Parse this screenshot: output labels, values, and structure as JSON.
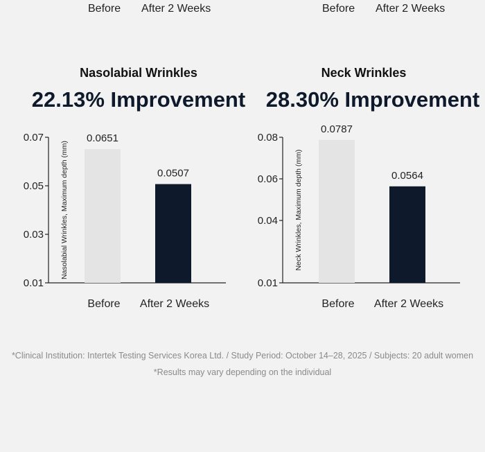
{
  "top_labels": {
    "left": [
      "Before",
      "After 2 Weeks"
    ],
    "right": [
      "Before",
      "After 2 Weeks"
    ]
  },
  "colors": {
    "before_bar": "#e4e4e4",
    "after_bar": "#0e1a2b",
    "axis": "#222222"
  },
  "chart_data": [
    {
      "type": "bar",
      "title": "Nasolabial Wrinkles",
      "headline": "22.13% Improvement",
      "categories": [
        "Before",
        "After 2 Weeks"
      ],
      "values": [
        0.0651,
        0.0507
      ],
      "value_labels": [
        "0.0651",
        "0.0507"
      ],
      "ylabel": "Nasolabial Wrinkles, Maximum depth (mm)",
      "ylim": [
        0.01,
        0.07
      ],
      "yticks": [
        0.01,
        0.03,
        0.05,
        0.07
      ],
      "ytick_labels": [
        "0.01",
        "0.03",
        "0.05",
        "0.07"
      ],
      "grid": false
    },
    {
      "type": "bar",
      "title": "Neck Wrinkles",
      "headline": "28.30% Improvement",
      "categories": [
        "Before",
        "After 2 Weeks"
      ],
      "values": [
        0.0787,
        0.0564
      ],
      "value_labels": [
        "0.0787",
        "0.0564"
      ],
      "ylabel": "Neck Wrinkles, Maximum depth (mm)",
      "ylim": [
        0.01,
        0.08
      ],
      "yticks": [
        0.01,
        0.04,
        0.06,
        0.08
      ],
      "ytick_labels": [
        "0.01",
        "0.04",
        "0.06",
        "0.08"
      ],
      "grid": false
    }
  ],
  "footnotes": [
    "*Clinical Institution: Intertek Testing Services Korea Ltd. / Study Period: October 14–28, 2025 / Subjects: 20 adult women",
    "*Results may vary depending on the individual"
  ]
}
